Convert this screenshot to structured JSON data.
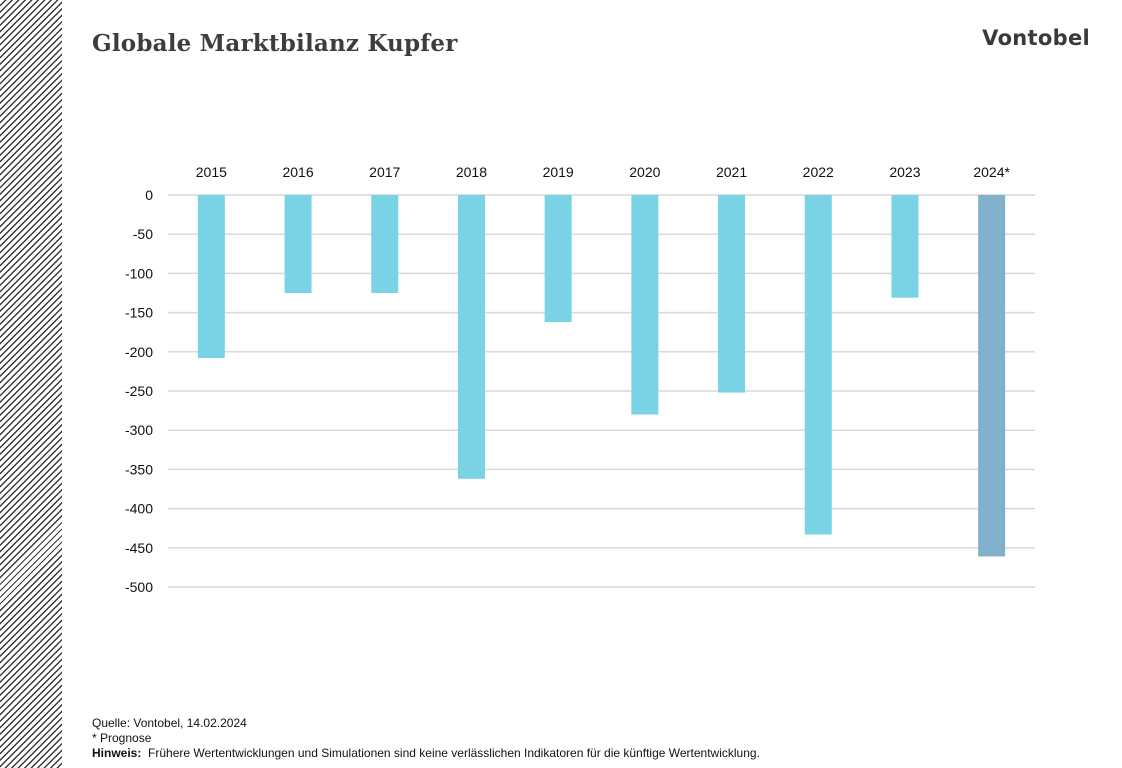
{
  "title": "Globale Marktbilanz Kupfer",
  "logo": "Vontobel",
  "chart_data": {
    "type": "bar",
    "categories": [
      "2015",
      "2016",
      "2017",
      "2018",
      "2019",
      "2020",
      "2021",
      "2022",
      "2023",
      "2024*"
    ],
    "values": [
      -208,
      -125,
      -125,
      -362,
      -162,
      -280,
      -252,
      -433,
      -131,
      -461
    ],
    "ylim": [
      -500,
      0
    ],
    "yticks": [
      0,
      -50,
      -100,
      -150,
      -200,
      -250,
      -300,
      -350,
      -400,
      -450,
      -500
    ],
    "grid": true,
    "x_axis_position": "top",
    "colors": {
      "actual": "#79d3e5",
      "forecast": "#80b0cb"
    },
    "forecast_index": 9
  },
  "footer": {
    "source": "Quelle: Vontobel, 14.02.2024",
    "footnote": "* Prognose",
    "note_label": "Hinweis:",
    "note_text": "Frühere Wertentwicklungen und Simulationen sind keine verlässlichen Indikatoren für die künftige Wertentwicklung."
  }
}
